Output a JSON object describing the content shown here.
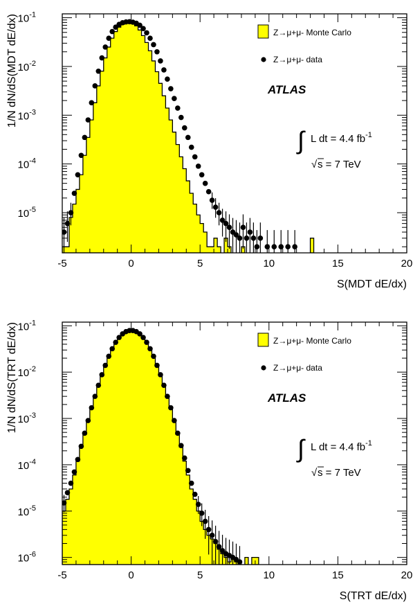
{
  "chart_data": [
    {
      "type": "histogram+scatter",
      "xlabel": "S(MDT dE/dx)",
      "ylabel": "1/N dN/dS(MDT dE/dx)",
      "xlim": [
        -5,
        20
      ],
      "ylim": [
        1.5e-06,
        0.12
      ],
      "log_y": true,
      "x_ticks": [
        -5,
        0,
        5,
        10,
        15,
        20
      ],
      "y_tick_labels": [
        {
          "base": "10",
          "exp": "-1",
          "value": 0.1
        },
        {
          "base": "10",
          "exp": "-2",
          "value": 0.01
        },
        {
          "base": "10",
          "exp": "-3",
          "value": 0.001
        },
        {
          "base": "10",
          "exp": "-4",
          "value": 0.0001
        },
        {
          "base": "10",
          "exp": "-5",
          "value": 1e-05
        }
      ],
      "series": [
        {
          "name": "Z→μ+μ- Monte Carlo",
          "style": "filled-step",
          "color": "#ffff00",
          "x": [
            -5.0,
            -4.75,
            -4.5,
            -4.25,
            -4.0,
            -3.75,
            -3.5,
            -3.25,
            -3.0,
            -2.75,
            -2.5,
            -2.25,
            -2.0,
            -1.75,
            -1.5,
            -1.25,
            -1.0,
            -0.75,
            -0.5,
            -0.25,
            0.0,
            0.25,
            0.5,
            0.75,
            1.0,
            1.25,
            1.5,
            1.75,
            2.0,
            2.25,
            2.5,
            2.75,
            3.0,
            3.25,
            3.5,
            3.75,
            4.0,
            4.25,
            4.5,
            4.75,
            5.0,
            5.25,
            5.5,
            5.75,
            6.0,
            6.25,
            6.5,
            6.75,
            7.0,
            7.25,
            7.5,
            7.75,
            8.0,
            8.25,
            8.5,
            8.75,
            9.0,
            9.25,
            9.5,
            9.75,
            10.0,
            10.25,
            10.5,
            10.75,
            11.0,
            11.25,
            11.5,
            11.75,
            12.0,
            12.25,
            12.5,
            12.75,
            13.0,
            13.25,
            13.5
          ],
          "values": [
            2e-06,
            2e-06,
            8e-06,
            1.5e-05,
            3e-05,
            6e-05,
            0.00015,
            0.00035,
            0.0008,
            0.0018,
            0.004,
            0.008,
            0.015,
            0.025,
            0.038,
            0.052,
            0.064,
            0.073,
            0.077,
            0.078,
            0.076,
            0.068,
            0.056,
            0.043,
            0.031,
            0.021,
            0.013,
            0.0078,
            0.0045,
            0.0025,
            0.0014,
            0.0008,
            0.00045,
            0.00025,
            0.00014,
            8e-05,
            4.5e-05,
            2.5e-05,
            1.5e-05,
            9e-06,
            6e-06,
            4e-06,
            2e-06,
            2e-06,
            3e-06,
            2e-06,
            0,
            3e-06,
            2e-06,
            0,
            0,
            0,
            2e-06,
            0,
            0,
            0,
            0,
            0,
            0,
            0,
            0,
            0,
            0,
            0,
            0,
            0,
            0,
            0,
            0,
            0,
            0,
            0,
            3e-06,
            0,
            0
          ]
        },
        {
          "name": "Z→μ+μ- data",
          "style": "points-with-errors",
          "color": "#000000",
          "x": [
            -4.875,
            -4.625,
            -4.375,
            -4.125,
            -3.875,
            -3.625,
            -3.375,
            -3.125,
            -2.875,
            -2.625,
            -2.375,
            -2.125,
            -1.875,
            -1.625,
            -1.375,
            -1.125,
            -0.875,
            -0.625,
            -0.375,
            -0.125,
            0.125,
            0.375,
            0.625,
            0.875,
            1.125,
            1.375,
            1.625,
            1.875,
            2.125,
            2.375,
            2.625,
            2.875,
            3.125,
            3.375,
            3.625,
            3.875,
            4.125,
            4.375,
            4.625,
            4.875,
            5.125,
            5.375,
            5.625,
            5.875,
            6.125,
            6.375,
            6.625,
            6.875,
            7.125,
            7.375,
            7.625,
            7.875,
            8.125,
            8.375,
            8.625,
            8.875,
            9.125,
            9.375,
            9.875,
            10.375,
            10.875,
            11.375,
            11.875
          ],
          "values": [
            4e-06,
            6e-06,
            1e-05,
            2.5e-05,
            6e-05,
            0.00015,
            0.00035,
            0.0008,
            0.0018,
            0.004,
            0.008,
            0.015,
            0.025,
            0.038,
            0.052,
            0.064,
            0.073,
            0.079,
            0.082,
            0.083,
            0.081,
            0.077,
            0.07,
            0.06,
            0.049,
            0.038,
            0.028,
            0.02,
            0.013,
            0.0085,
            0.0055,
            0.0035,
            0.0022,
            0.0014,
            0.0009,
            0.00055,
            0.00035,
            0.00022,
            0.00014,
            9e-05,
            6e-05,
            4e-05,
            2.7e-05,
            1.8e-05,
            1.3e-05,
            1e-05,
            7e-06,
            6e-06,
            5e-06,
            4e-06,
            3.5e-06,
            3e-06,
            5e-06,
            3e-06,
            4e-06,
            3e-06,
            2e-06,
            3e-06,
            2e-06,
            2e-06,
            2e-06,
            2e-06,
            2e-06
          ]
        }
      ],
      "legend": "top-right",
      "annotations": {
        "experiment": "ATLAS",
        "lumi_prefix": "L dt = 4.4 fb",
        "lumi_exp": "-1",
        "energy_prefix": "s",
        "energy_suffix": " = 7 TeV"
      }
    },
    {
      "type": "histogram+scatter",
      "xlabel": "S(TRT dE/dx)",
      "ylabel": "1/N dN/dS(TRT dE/dx)",
      "xlim": [
        -5,
        20
      ],
      "ylim": [
        7e-07,
        0.12
      ],
      "log_y": true,
      "x_ticks": [
        -5,
        0,
        5,
        10,
        15,
        20
      ],
      "y_tick_labels": [
        {
          "base": "10",
          "exp": "-1",
          "value": 0.1
        },
        {
          "base": "10",
          "exp": "-2",
          "value": 0.01
        },
        {
          "base": "10",
          "exp": "-3",
          "value": 0.001
        },
        {
          "base": "10",
          "exp": "-4",
          "value": 0.0001
        },
        {
          "base": "10",
          "exp": "-5",
          "value": 1e-05
        },
        {
          "base": "10",
          "exp": "-6",
          "value": 1e-06
        }
      ],
      "series": [
        {
          "name": "Z→μ+μ- Monte Carlo",
          "style": "filled-step",
          "color": "#ffff00",
          "x": [
            -5.0,
            -4.75,
            -4.5,
            -4.25,
            -4.0,
            -3.75,
            -3.5,
            -3.25,
            -3.0,
            -2.75,
            -2.5,
            -2.25,
            -2.0,
            -1.75,
            -1.5,
            -1.25,
            -1.0,
            -0.75,
            -0.5,
            -0.25,
            0.0,
            0.25,
            0.5,
            0.75,
            1.0,
            1.25,
            1.5,
            1.75,
            2.0,
            2.25,
            2.5,
            2.75,
            3.0,
            3.25,
            3.5,
            3.75,
            4.0,
            4.25,
            4.5,
            4.75,
            5.0,
            5.25,
            5.5,
            5.75,
            6.0,
            6.25,
            6.5,
            6.75,
            7.0,
            7.25,
            7.5,
            7.75,
            8.0,
            8.25,
            8.5,
            8.75,
            9.0,
            9.25
          ],
          "values": [
            1e-05,
            1.8e-05,
            3e-05,
            6e-05,
            0.00012,
            0.00024,
            0.00045,
            0.0009,
            0.0017,
            0.003,
            0.0052,
            0.0088,
            0.014,
            0.022,
            0.032,
            0.044,
            0.056,
            0.067,
            0.075,
            0.079,
            0.079,
            0.075,
            0.067,
            0.056,
            0.044,
            0.032,
            0.022,
            0.014,
            0.0088,
            0.0052,
            0.003,
            0.0017,
            0.0009,
            0.00045,
            0.00024,
            0.00012,
            6e-05,
            3e-05,
            1.8e-05,
            1e-05,
            6e-06,
            4e-06,
            3e-06,
            2.5e-06,
            2e-06,
            1.5e-06,
            1.2e-06,
            1e-06,
            8e-07,
            1e-06,
            8e-07,
            0,
            0,
            1e-06,
            0,
            1e-06,
            1e-06,
            0
          ]
        },
        {
          "name": "Z→μ+μ- data",
          "style": "points-with-errors",
          "color": "#000000",
          "x": [
            -4.875,
            -4.625,
            -4.375,
            -4.125,
            -3.875,
            -3.625,
            -3.375,
            -3.125,
            -2.875,
            -2.625,
            -2.375,
            -2.125,
            -1.875,
            -1.625,
            -1.375,
            -1.125,
            -0.875,
            -0.625,
            -0.375,
            -0.125,
            0.125,
            0.375,
            0.625,
            0.875,
            1.125,
            1.375,
            1.625,
            1.875,
            2.125,
            2.375,
            2.625,
            2.875,
            3.125,
            3.375,
            3.625,
            3.875,
            4.125,
            4.375,
            4.625,
            4.875,
            5.125,
            5.375,
            5.625,
            5.875,
            6.125,
            6.375,
            6.625,
            6.875,
            7.125,
            7.375,
            7.625,
            7.875
          ],
          "values": [
            1.5e-05,
            2.5e-05,
            4e-05,
            7e-05,
            0.00013,
            0.00025,
            0.00048,
            0.0009,
            0.0017,
            0.003,
            0.0052,
            0.0088,
            0.014,
            0.022,
            0.032,
            0.044,
            0.056,
            0.067,
            0.075,
            0.079,
            0.079,
            0.075,
            0.067,
            0.056,
            0.044,
            0.032,
            0.022,
            0.014,
            0.0088,
            0.0052,
            0.003,
            0.0017,
            0.0009,
            0.00048,
            0.00026,
            0.00014,
            7.5e-05,
            4e-05,
            2.3e-05,
            1.4e-05,
            9e-06,
            6e-06,
            4e-06,
            3e-06,
            2.2e-06,
            1.7e-06,
            1.4e-06,
            1.2e-06,
            1.1e-06,
            1e-06,
            9e-07,
            8e-07
          ]
        }
      ],
      "legend": "top-right",
      "annotations": {
        "experiment": "ATLAS",
        "lumi_prefix": "L dt = 4.4 fb",
        "lumi_exp": "-1",
        "energy_prefix": "s",
        "energy_suffix": " = 7 TeV"
      }
    }
  ]
}
